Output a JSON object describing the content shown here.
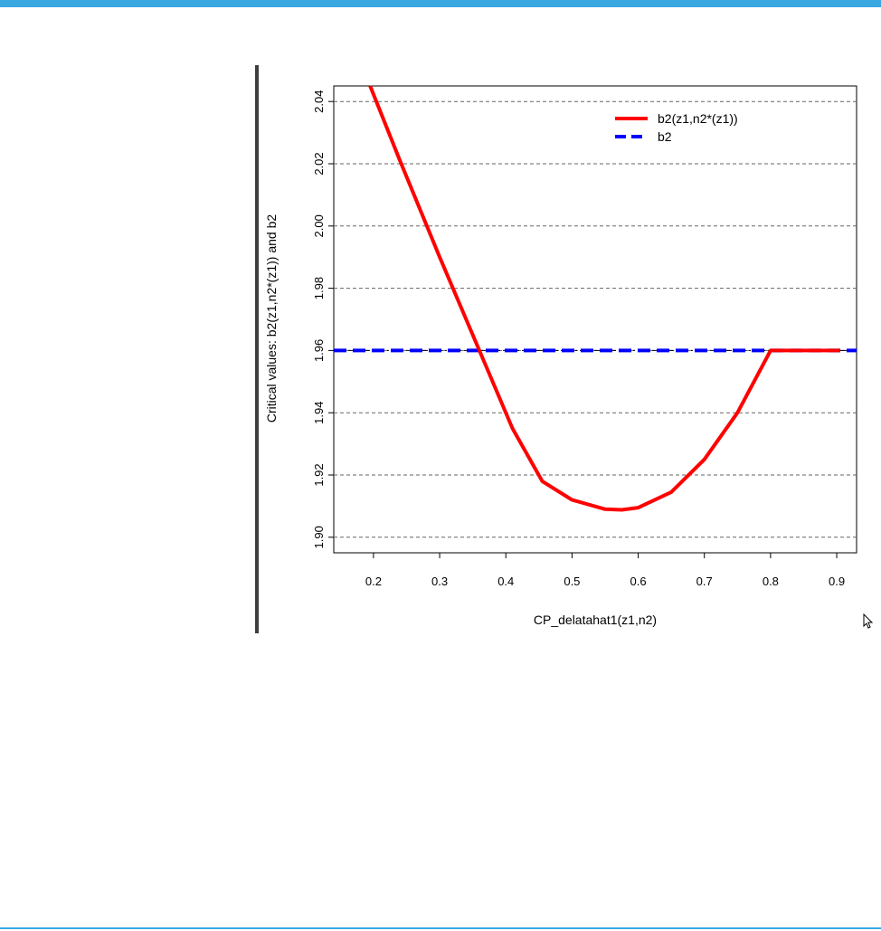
{
  "chart_data": {
    "type": "line",
    "title": "",
    "xlabel": "CP_delatahat1(z1,n2)",
    "ylabel": "Critical values: b2(z1,n2*(z1)) and b2",
    "xlim": [
      0.14,
      0.93
    ],
    "ylim": [
      1.895,
      2.045
    ],
    "x_ticks": [
      "0.2",
      "0.3",
      "0.4",
      "0.5",
      "0.6",
      "0.7",
      "0.8",
      "0.9"
    ],
    "y_ticks": [
      "1.90",
      "1.92",
      "1.94",
      "1.96",
      "1.98",
      "2.00",
      "2.02",
      "2.04"
    ],
    "grid": "horizontal dashed",
    "legend_position": "top-right",
    "series": [
      {
        "name": "b2(z1,n2*(z1))",
        "color": "#ff0000",
        "style": "solid",
        "x": [
          0.195,
          0.24,
          0.3,
          0.36,
          0.41,
          0.455,
          0.5,
          0.55,
          0.575,
          0.6,
          0.65,
          0.7,
          0.75,
          0.8,
          0.905
        ],
        "y": [
          2.045,
          2.021,
          1.99,
          1.96,
          1.935,
          1.918,
          1.912,
          1.909,
          1.9088,
          1.9095,
          1.9145,
          1.925,
          1.94,
          1.96,
          1.96
        ]
      },
      {
        "name": "b2",
        "color": "#0000ff",
        "style": "dashed",
        "x": [
          0.14,
          0.93
        ],
        "y": [
          1.96,
          1.96
        ]
      }
    ]
  }
}
